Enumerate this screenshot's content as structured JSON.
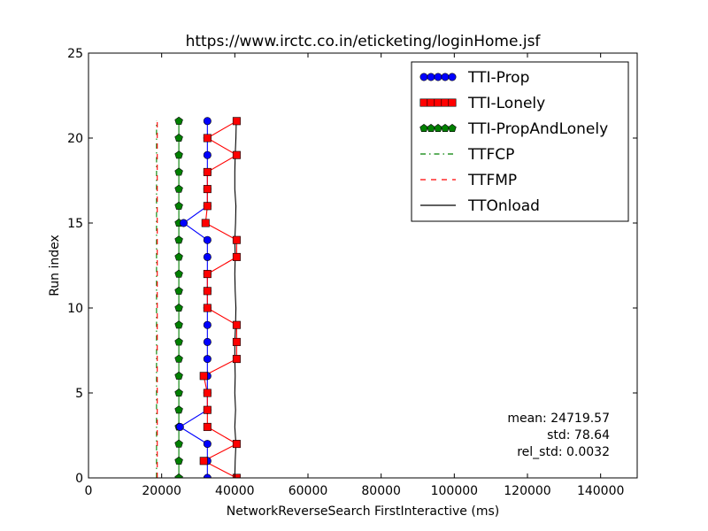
{
  "chart_data": {
    "type": "line",
    "title": "https://www.irctc.co.in/eticketing/loginHome.jsf",
    "xlabel": "NetworkReverseSearch FirstInteractive (ms)",
    "ylabel": "Run index",
    "xlim": [
      0,
      150000
    ],
    "ylim": [
      0,
      25
    ],
    "xticks": [
      0,
      20000,
      40000,
      60000,
      80000,
      100000,
      120000,
      140000
    ],
    "xtick_labels": [
      "0",
      "20000",
      "40000",
      "60000",
      "80000",
      "100000",
      "120000",
      "140000"
    ],
    "yticks": [
      0,
      5,
      10,
      15,
      20,
      25
    ],
    "ytick_labels": [
      "0",
      "5",
      "10",
      "15",
      "20",
      "25"
    ],
    "grid": false,
    "legend_position": "top-right",
    "series": [
      {
        "name": "TTI-Prop",
        "color": "#0000ff",
        "marker": "circle",
        "line_style": "solid",
        "y": [
          0,
          1,
          2,
          3,
          4,
          5,
          6,
          7,
          8,
          9,
          10,
          11,
          12,
          13,
          14,
          15,
          16,
          17,
          18,
          19,
          20,
          21
        ],
        "x": [
          32500,
          32500,
          32500,
          25000,
          32500,
          32500,
          32500,
          32500,
          32500,
          32500,
          32500,
          32500,
          32500,
          32500,
          32500,
          26000,
          32500,
          32500,
          32500,
          32500,
          32500,
          32500
        ]
      },
      {
        "name": "TTI-Lonely",
        "color": "#ff0000",
        "marker": "square",
        "line_style": "solid",
        "y": [
          0,
          1,
          2,
          3,
          4,
          5,
          6,
          7,
          8,
          9,
          10,
          11,
          12,
          13,
          14,
          15,
          16,
          17,
          18,
          19,
          20,
          21
        ],
        "x": [
          40500,
          31500,
          40500,
          32500,
          32500,
          32500,
          31500,
          40500,
          40500,
          40500,
          32500,
          32500,
          32500,
          40500,
          40500,
          32000,
          32500,
          32500,
          32500,
          40500,
          32500,
          40500
        ]
      },
      {
        "name": "TTI-PropAndLonely",
        "color": "#008000",
        "marker": "pentagon",
        "line_style": "solid",
        "y": [
          0,
          1,
          2,
          3,
          4,
          5,
          6,
          7,
          8,
          9,
          10,
          11,
          12,
          13,
          14,
          15,
          16,
          17,
          18,
          19,
          20,
          21
        ],
        "x": [
          24700,
          24700,
          24700,
          24700,
          24700,
          24700,
          24700,
          24700,
          24700,
          24700,
          24700,
          24700,
          24700,
          24700,
          24700,
          24700,
          24700,
          24700,
          24700,
          24700,
          24700,
          24700
        ]
      },
      {
        "name": "TTFCP",
        "color": "#008000",
        "marker": "none",
        "line_style": "dashdot",
        "y": [
          0,
          1,
          2,
          3,
          4,
          5,
          6,
          7,
          8,
          9,
          10,
          11,
          12,
          13,
          14,
          15,
          16,
          17,
          18,
          19,
          20,
          21
        ],
        "x": [
          18600,
          18600,
          18600,
          18600,
          18600,
          18600,
          18600,
          18600,
          18600,
          18600,
          18600,
          18600,
          18600,
          18600,
          18600,
          18600,
          18600,
          18600,
          18600,
          18600,
          18600,
          18600
        ]
      },
      {
        "name": "TTFMP",
        "color": "#ff0000",
        "marker": "none",
        "line_style": "dashed",
        "y": [
          0,
          1,
          2,
          3,
          4,
          5,
          6,
          7,
          8,
          9,
          10,
          11,
          12,
          13,
          14,
          15,
          16,
          17,
          18,
          19,
          20,
          21
        ],
        "x": [
          18800,
          18800,
          18800,
          18800,
          18800,
          18800,
          18800,
          18800,
          18800,
          18800,
          18800,
          18800,
          18800,
          18800,
          18800,
          18800,
          18800,
          18800,
          18800,
          18800,
          18800,
          18800
        ]
      },
      {
        "name": "TTOnload",
        "color": "#000000",
        "marker": "none",
        "line_style": "solid",
        "y": [
          0,
          1,
          2,
          3,
          4,
          5,
          6,
          7,
          8,
          9,
          10,
          11,
          12,
          13,
          14,
          15,
          16,
          17,
          18,
          19,
          20,
          21
        ],
        "x": [
          40000,
          40100,
          40300,
          40000,
          40200,
          40000,
          40100,
          40000,
          40000,
          40200,
          40300,
          40100,
          40000,
          40100,
          40000,
          40200,
          40300,
          40000,
          40000,
          40100,
          40300,
          40400
        ]
      }
    ],
    "annotations": [
      "mean: 24719.57",
      "std: 78.64",
      "rel_std: 0.0032"
    ]
  }
}
